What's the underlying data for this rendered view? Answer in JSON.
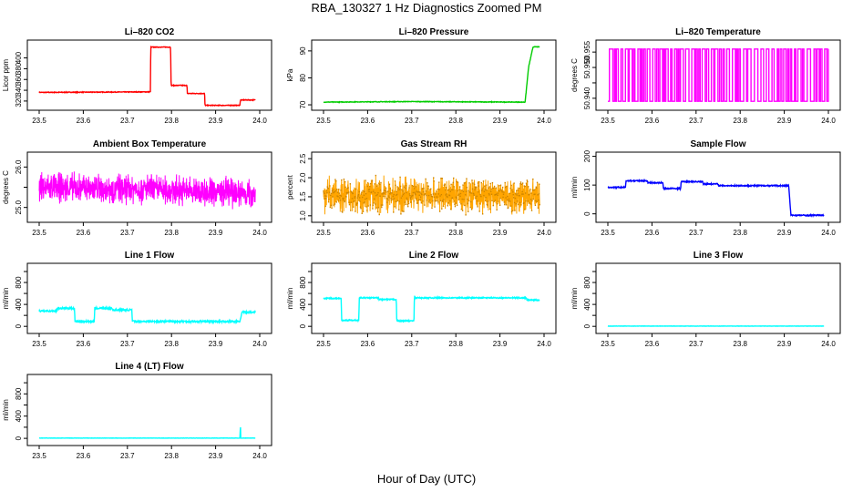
{
  "figure": {
    "title": "RBA_130327  1 Hz Diagnostics Zoomed PM",
    "xlabel": "Hour of Day (UTC)"
  },
  "chart_data": [
    {
      "type": "line",
      "title": "Li–820 CO2",
      "ylabel": "Licor ppm",
      "color": "#ff0000",
      "xlim": [
        23.5,
        24.0
      ],
      "xticks": [
        23.5,
        23.6,
        23.7,
        23.8,
        23.9,
        24.0
      ],
      "ylim": [
        308,
        428
      ],
      "yticks": [
        320,
        340,
        360,
        380,
        400
      ],
      "ytick_labels": [
        "320",
        "340",
        "360",
        "380",
        "400"
      ],
      "noise": 0.6,
      "series": [
        {
          "x": [
            23.5,
            23.752,
            23.753,
            23.798,
            23.799,
            23.835,
            23.836,
            23.875,
            23.876,
            23.955,
            23.956,
            23.99
          ],
          "y": [
            336,
            337,
            420,
            420,
            349,
            349,
            334,
            334,
            312,
            312,
            322,
            322
          ]
        }
      ]
    },
    {
      "type": "line",
      "title": "Li–820 Pressure",
      "ylabel": "kPa",
      "color": "#00cc00",
      "xlim": [
        23.5,
        24.0
      ],
      "xticks": [
        23.5,
        23.6,
        23.7,
        23.8,
        23.9,
        24.0
      ],
      "ylim": [
        69,
        93
      ],
      "yticks": [
        70,
        80,
        90
      ],
      "ytick_labels": [
        "70",
        "80",
        "90"
      ],
      "noise": 0.1,
      "series": [
        {
          "x": [
            23.5,
            23.7,
            23.95,
            23.957,
            23.965,
            23.975,
            23.99
          ],
          "y": [
            71,
            71.2,
            71,
            71,
            84,
            91.5,
            91.5
          ]
        }
      ]
    },
    {
      "type": "line",
      "title": "Li–820 Temperature",
      "ylabel": "degrees C",
      "color": "#ff00ff",
      "xlim": [
        23.5,
        24.0
      ],
      "xticks": [
        23.5,
        23.6,
        23.7,
        23.8,
        23.9,
        24.0
      ],
      "ylim": [
        50.937,
        50.958
      ],
      "yticks": [
        50.94,
        50.945,
        50.95,
        50.955
      ],
      "ytick_labels": [
        "50.940",
        "",
        "50.950",
        "50.955"
      ],
      "series": [
        {
          "x": [
            23.5,
            24.0
          ],
          "y": [
            50.939,
            50.956
          ]
        }
      ]
    },
    {
      "type": "line",
      "title": "Ambient Box Temperature",
      "ylabel": "degrees C",
      "color": "#ff00ff",
      "xlim": [
        23.5,
        24.0
      ],
      "xticks": [
        23.5,
        23.6,
        23.7,
        23.8,
        23.9,
        24.0
      ],
      "ylim": [
        24.7,
        26.3
      ],
      "yticks": [
        25.0,
        25.5,
        26.0
      ],
      "ytick_labels": [
        "25.0",
        "",
        "26.0"
      ],
      "noise": 0.2,
      "series": [
        {
          "x": [
            23.5,
            23.75,
            23.99
          ],
          "y": [
            25.5,
            25.45,
            25.35
          ]
        }
      ]
    },
    {
      "type": "line",
      "title": "Gas Stream RH",
      "ylabel": "percent",
      "color": "#ffa500",
      "xlim": [
        23.5,
        24.0
      ],
      "xticks": [
        23.5,
        23.6,
        23.7,
        23.8,
        23.9,
        24.0
      ],
      "ylim": [
        0.9,
        2.6
      ],
      "yticks": [
        1.0,
        1.5,
        2.0,
        2.5
      ],
      "ytick_labels": [
        "1.0",
        "1.5",
        "2.0",
        "2.5"
      ],
      "noise": 0.25,
      "series": [
        {
          "x": [
            23.5,
            23.75,
            23.99
          ],
          "y": [
            1.55,
            1.55,
            1.5
          ]
        }
      ]
    },
    {
      "type": "line",
      "title": "Sample Flow",
      "ylabel": "ml/min",
      "color": "#0000ff",
      "xlim": [
        23.5,
        24.0
      ],
      "xticks": [
        23.5,
        23.6,
        23.7,
        23.8,
        23.9,
        24.0
      ],
      "ylim": [
        -20,
        205
      ],
      "yticks": [
        0,
        100,
        200
      ],
      "ytick_labels": [
        "0",
        "100",
        "200"
      ],
      "noise": 2,
      "series": [
        {
          "x": [
            23.5,
            23.54,
            23.541,
            23.59,
            23.591,
            23.625,
            23.626,
            23.665,
            23.666,
            23.715,
            23.716,
            23.75,
            23.751,
            23.91,
            23.915,
            23.99
          ],
          "y": [
            92,
            92,
            115,
            115,
            108,
            108,
            88,
            88,
            112,
            112,
            104,
            104,
            98,
            98,
            -5,
            -5
          ]
        }
      ]
    },
    {
      "type": "line",
      "title": "Line 1 Flow",
      "ylabel": "ml/min",
      "color": "#00ffff",
      "xlim": [
        23.5,
        24.0
      ],
      "xticks": [
        23.5,
        23.6,
        23.7,
        23.8,
        23.9,
        24.0
      ],
      "ylim": [
        -80,
        1100
      ],
      "yticks": [
        0,
        200,
        400,
        600,
        800,
        1000
      ],
      "ytick_labels": [
        "0",
        "",
        "400",
        "",
        "800",
        ""
      ],
      "noise": 15,
      "series": [
        {
          "x": [
            23.5,
            23.54,
            23.541,
            23.58,
            23.581,
            23.625,
            23.626,
            23.665,
            23.666,
            23.71,
            23.711,
            23.715,
            23.955,
            23.96,
            23.99
          ],
          "y": [
            280,
            280,
            330,
            330,
            90,
            90,
            330,
            330,
            300,
            300,
            100,
            90,
            90,
            260,
            260
          ]
        }
      ]
    },
    {
      "type": "line",
      "title": "Line 2 Flow",
      "ylabel": "ml/min",
      "color": "#00ffff",
      "xlim": [
        23.5,
        24.0
      ],
      "xticks": [
        23.5,
        23.6,
        23.7,
        23.8,
        23.9,
        24.0
      ],
      "ylim": [
        -80,
        1100
      ],
      "yticks": [
        0,
        200,
        400,
        600,
        800,
        1000
      ],
      "ytick_labels": [
        "0",
        "",
        "400",
        "",
        "800",
        ""
      ],
      "noise": 10,
      "series": [
        {
          "x": [
            23.5,
            23.54,
            23.541,
            23.58,
            23.581,
            23.625,
            23.626,
            23.665,
            23.666,
            23.705,
            23.706,
            23.96,
            23.961,
            23.99
          ],
          "y": [
            510,
            510,
            110,
            110,
            520,
            520,
            490,
            490,
            100,
            100,
            520,
            520,
            480,
            480
          ]
        }
      ]
    },
    {
      "type": "line",
      "title": "Line 3 Flow",
      "ylabel": "ml/min",
      "color": "#00ffff",
      "xlim": [
        23.5,
        24.0
      ],
      "xticks": [
        23.5,
        23.6,
        23.7,
        23.8,
        23.9,
        24.0
      ],
      "ylim": [
        -80,
        1100
      ],
      "yticks": [
        0,
        200,
        400,
        600,
        800,
        1000
      ],
      "ytick_labels": [
        "0",
        "",
        "400",
        "",
        "800",
        ""
      ],
      "noise": 2,
      "series": [
        {
          "x": [
            23.5,
            23.99
          ],
          "y": [
            5,
            5
          ]
        }
      ]
    },
    {
      "type": "line",
      "title": "Line 4 (LT) Flow",
      "ylabel": "ml/min",
      "color": "#00ffff",
      "xlim": [
        23.5,
        24.0
      ],
      "xticks": [
        23.5,
        23.6,
        23.7,
        23.8,
        23.9,
        24.0
      ],
      "ylim": [
        -80,
        1100
      ],
      "yticks": [
        0,
        200,
        400,
        600,
        800,
        1000
      ],
      "ytick_labels": [
        "0",
        "",
        "400",
        "",
        "800",
        ""
      ],
      "noise": 2,
      "series": [
        {
          "x": [
            23.5,
            23.955,
            23.956,
            23.9565,
            23.957,
            23.99
          ],
          "y": [
            5,
            5,
            200,
            200,
            5,
            5
          ]
        }
      ]
    }
  ]
}
